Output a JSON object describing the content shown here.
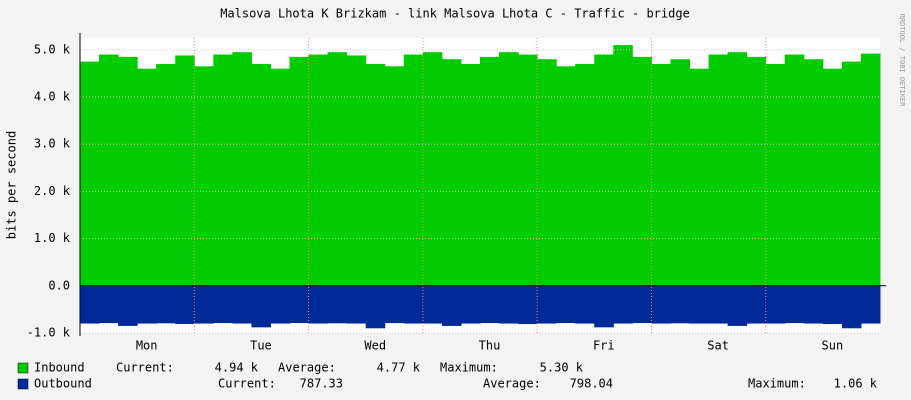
{
  "chart_data": {
    "type": "area",
    "title": "Malsova Lhota K Brizkam - link Malsova Lhota C - Traffic - bridge",
    "y_label": "bits per second",
    "side_text": "RRDTOOL / TOBI OETIKER",
    "categories": [
      null,
      null,
      null,
      "Mon",
      null,
      null,
      null,
      null,
      null,
      "Tue",
      null,
      null,
      null,
      null,
      null,
      "Wed",
      null,
      null,
      null,
      null,
      null,
      "Thu",
      null,
      null,
      null,
      null,
      null,
      "Fri",
      null,
      null,
      null,
      null,
      null,
      "Sat",
      null,
      null,
      null,
      null,
      null,
      "Sun",
      null,
      null
    ],
    "series": [
      {
        "name": "Inbound",
        "color": "#00cc00",
        "values": [
          4750,
          4900,
          4850,
          4600,
          4700,
          4880,
          4650,
          4900,
          4950,
          4700,
          4600,
          4850,
          4900,
          4950,
          4880,
          4700,
          4650,
          4900,
          4950,
          4800,
          4700,
          4850,
          4950,
          4900,
          4800,
          4650,
          4700,
          4900,
          5100,
          4850,
          4700,
          4800,
          4600,
          4900,
          4950,
          4850,
          4700,
          4900,
          4800,
          4600,
          4750,
          4920
        ],
        "stats": [
          "Current:",
          "4.94 k",
          "Average:",
          "4.77 k",
          "Maximum:",
          "5.30 k"
        ]
      },
      {
        "name": "Outbound",
        "color": "#002a97",
        "values": [
          -800,
          -790,
          -850,
          -800,
          -795,
          -810,
          -800,
          -790,
          -800,
          -880,
          -800,
          -790,
          -800,
          -795,
          -800,
          -900,
          -790,
          -800,
          -800,
          -850,
          -800,
          -790,
          -800,
          -810,
          -800,
          -790,
          -800,
          -880,
          -800,
          -790,
          -800,
          -795,
          -800,
          -800,
          -850,
          -800,
          -800,
          -790,
          -800,
          -810,
          -900,
          -800
        ],
        "stats": [
          "Current:",
          "787.33",
          "Average:",
          "798.04",
          "Maximum:",
          "1.06 k"
        ]
      }
    ],
    "ylim": [
      -1000,
      5250
    ],
    "yticks": [
      {
        "value": -1000,
        "label": "-1.0 k"
      },
      {
        "value": 0,
        "label": "0.0"
      },
      {
        "value": 1000,
        "label": "1.0 k"
      },
      {
        "value": 2000,
        "label": "2.0 k"
      },
      {
        "value": 3000,
        "label": "3.0 k"
      },
      {
        "value": 4000,
        "label": "4.0 k"
      },
      {
        "value": 5000,
        "label": "5.0 k"
      }
    ],
    "grid": true
  }
}
